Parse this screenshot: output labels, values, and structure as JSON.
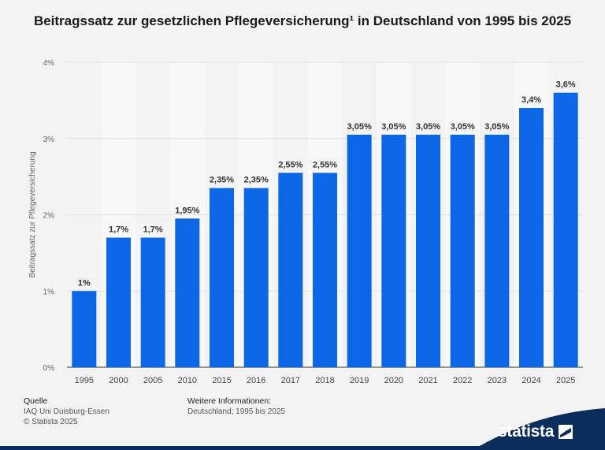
{
  "title": "Beitragssatz zur gesetzlichen Pflegeversicherung¹ in Deutschland von 1995 bis 2025",
  "source": {
    "heading": "Quelle",
    "line1": "IAQ Uni Duisburg-Essen",
    "line2": "© Statista 2025"
  },
  "info": {
    "heading": "Weitere Informationen:",
    "line1": "Deutschland; 1995 bis 2025"
  },
  "logo": {
    "text": "statista",
    "icon": "statista-flag-icon"
  },
  "colors": {
    "bar": "#0b67e6",
    "background": "#f3f3f3",
    "brand_dark": "#0b2d5b"
  },
  "chart_data": {
    "type": "bar",
    "ylabel": "Beitragssatz zur Pflegeversicherung",
    "xlabel": "",
    "ylim": [
      0,
      4
    ],
    "yticks": [
      "0%",
      "1%",
      "2%",
      "3%",
      "4%"
    ],
    "grid": true,
    "categories": [
      "1995",
      "2000",
      "2005",
      "2010",
      "2015",
      "2016",
      "2017",
      "2018",
      "2019",
      "2020",
      "2021",
      "2022",
      "2023",
      "2024",
      "2025"
    ],
    "values": [
      1,
      1.7,
      1.7,
      1.95,
      2.35,
      2.35,
      2.55,
      2.55,
      3.05,
      3.05,
      3.05,
      3.05,
      3.05,
      3.4,
      3.6
    ],
    "value_labels": [
      "1%",
      "1,7%",
      "1,7%",
      "1,95%",
      "2,35%",
      "2,35%",
      "2,55%",
      "2,55%",
      "3,05%",
      "3,05%",
      "3,05%",
      "3,05%",
      "3,05%",
      "3,4%",
      "3,6%"
    ]
  }
}
